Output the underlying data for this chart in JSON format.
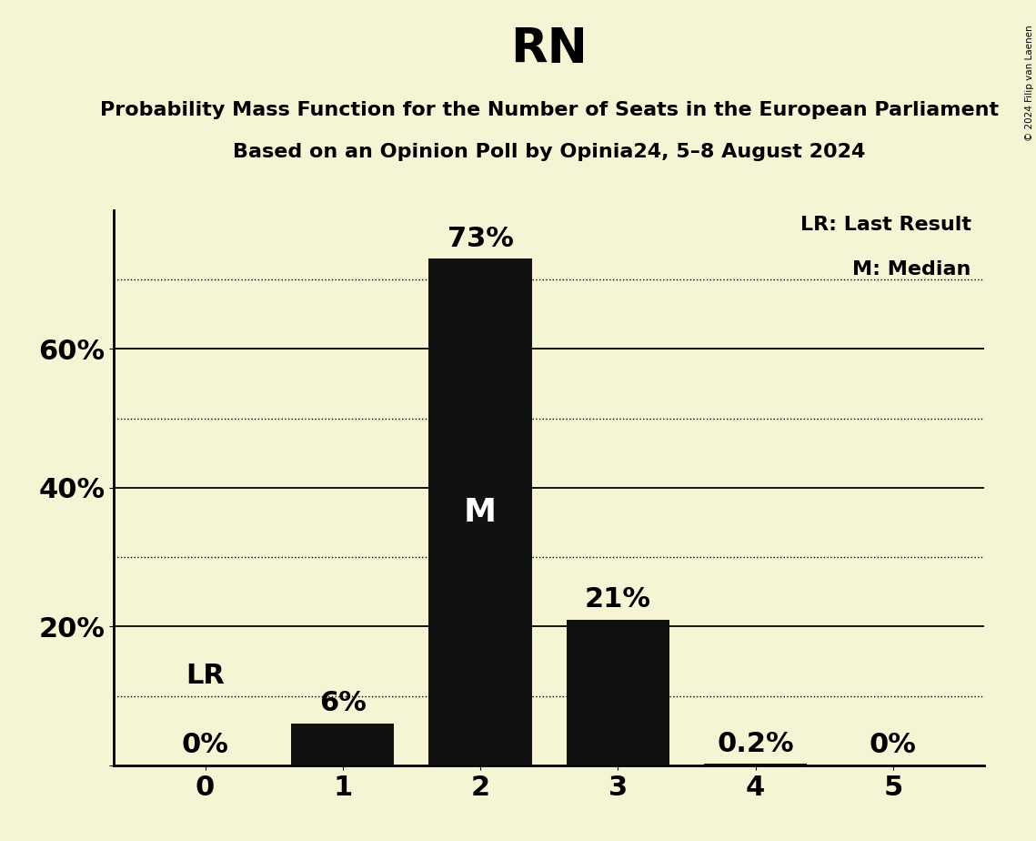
{
  "title": "RN",
  "subtitle_line1": "Probability Mass Function for the Number of Seats in the European Parliament",
  "subtitle_line2": "Based on an Opinion Poll by Opinia24, 5–8 August 2024",
  "copyright_text": "© 2024 Filip van Laenen",
  "categories": [
    0,
    1,
    2,
    3,
    4,
    5
  ],
  "values": [
    0.0,
    0.06,
    0.73,
    0.21,
    0.002,
    0.0
  ],
  "bar_labels": [
    "0%",
    "6%",
    "73%",
    "21%",
    "0.2%",
    "0%"
  ],
  "bar_color": "#111111",
  "background_color": "#f5f5d5",
  "median_bar": 2,
  "median_label": "M",
  "lr_value": 0.1,
  "lr_label": "LR",
  "yticks_solid": [
    0.2,
    0.4,
    0.6
  ],
  "yticks_dotted": [
    0.1,
    0.3,
    0.5,
    0.7
  ],
  "ylim": [
    0,
    0.8
  ],
  "legend_lr": "LR: Last Result",
  "legend_m": "M: Median",
  "title_fontsize": 38,
  "subtitle_fontsize": 16,
  "bar_label_fontsize": 22,
  "ytick_fontsize": 22,
  "xtick_fontsize": 22,
  "legend_fontsize": 16,
  "bar_width": 0.75
}
